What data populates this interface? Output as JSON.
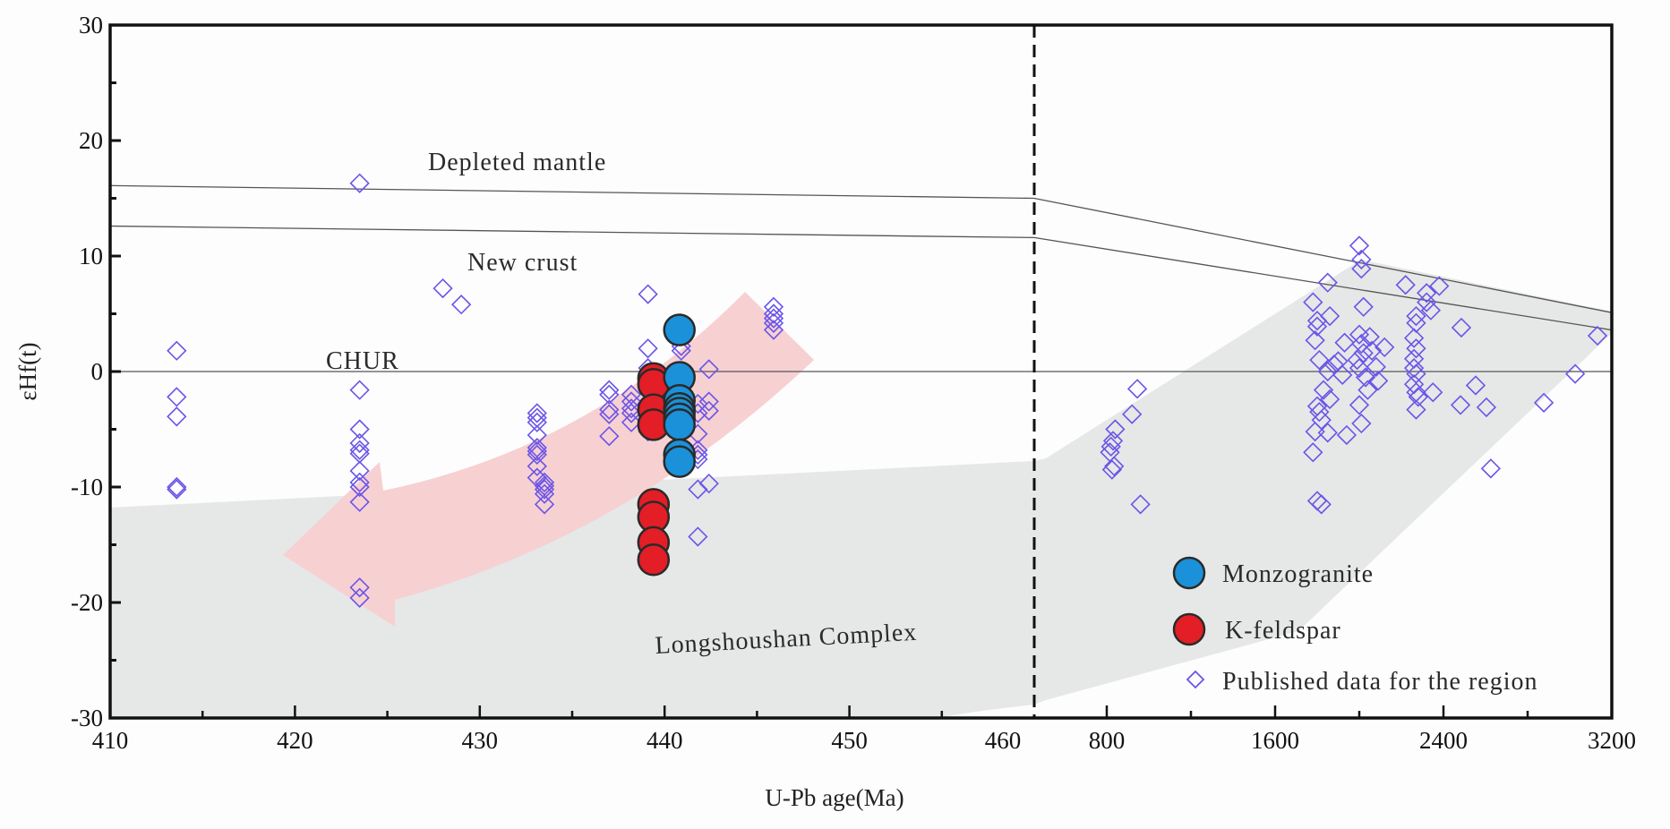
{
  "chart_data": {
    "type": "scatter",
    "title": "",
    "xlabel": "U-Pb age(Ma)",
    "ylabel": "εHf(t)",
    "ylim": [
      -30,
      30
    ],
    "yticks": [
      "30",
      "20",
      "10",
      "0",
      "-10",
      "-20",
      "-30"
    ],
    "ytick_values": [
      30,
      20,
      10,
      0,
      -10,
      -20,
      -30
    ],
    "x_panels": [
      {
        "name": "left",
        "range": [
          410,
          460
        ],
        "ticks": [
          410,
          420,
          430,
          440,
          450,
          460
        ],
        "tick_labels": [
          "410",
          "420",
          "430",
          "440",
          "450",
          "460"
        ],
        "minor_step": 5
      },
      {
        "name": "right",
        "range": [
          455,
          3200
        ],
        "ticks": [
          800,
          1600,
          2400,
          3200
        ],
        "tick_labels": [
          "800",
          "1600",
          "2400",
          "3200"
        ],
        "minor_ticks": [
          1200,
          2000,
          2800
        ]
      }
    ],
    "grid": false,
    "legend_position": "bottom-right",
    "reference_lines": [
      {
        "name": "Depleted mantle",
        "points": [
          [
            410,
            16.1
          ],
          [
            460,
            15.0
          ],
          [
            3200,
            5.1
          ]
        ]
      },
      {
        "name": "New crust",
        "points": [
          [
            410,
            12.6
          ],
          [
            460,
            11.6
          ],
          [
            3200,
            3.6
          ]
        ]
      },
      {
        "name": "CHUR",
        "points": [
          [
            410,
            0
          ],
          [
            3200,
            0
          ]
        ]
      }
    ],
    "annotations": [
      {
        "text": "Depleted mantle",
        "x": 423,
        "y": 18
      },
      {
        "text": "New crust",
        "x": 425,
        "y": 9
      },
      {
        "text": "CHUR",
        "x": 417,
        "y": 0.8
      },
      {
        "text": "Longshoushan Complex",
        "x": 440,
        "y": -23.5
      }
    ],
    "series": [
      {
        "name": "Monzogranite",
        "color": "#1a91d8",
        "marker": "circle",
        "points": [
          [
            440.8,
            3.6
          ],
          [
            440.8,
            -0.5
          ],
          [
            440.8,
            -2.5
          ],
          [
            440.8,
            -3.2
          ],
          [
            440.8,
            -3.6
          ],
          [
            440.8,
            -4.1
          ],
          [
            440.8,
            -4.6
          ],
          [
            440.8,
            -7.2
          ],
          [
            440.8,
            -7.8
          ]
        ]
      },
      {
        "name": "K-feldspar",
        "color": "#e31e26",
        "marker": "circle",
        "points": [
          [
            439.4,
            -0.6
          ],
          [
            439.4,
            -1.1
          ],
          [
            439.4,
            -3.3
          ],
          [
            439.4,
            -4.6
          ],
          [
            439.4,
            -11.5
          ],
          [
            439.4,
            -12.6
          ],
          [
            439.4,
            -14.8
          ],
          [
            439.4,
            -16.3
          ]
        ]
      },
      {
        "name": "Published data for the region",
        "color": "#6a55e8",
        "marker": "diamond",
        "points": [
          [
            413.6,
            1.8
          ],
          [
            413.6,
            -2.2
          ],
          [
            413.6,
            -3.9
          ],
          [
            413.6,
            -10.0
          ],
          [
            413.6,
            -10.2
          ],
          [
            423.5,
            16.3
          ],
          [
            423.5,
            -1.6
          ],
          [
            423.5,
            -5.0
          ],
          [
            423.5,
            -6.2
          ],
          [
            423.5,
            -6.8
          ],
          [
            423.5,
            -7.1
          ],
          [
            423.5,
            -8.6
          ],
          [
            423.5,
            -9.6
          ],
          [
            423.5,
            -10.0
          ],
          [
            423.5,
            -11.3
          ],
          [
            423.5,
            -18.7
          ],
          [
            423.5,
            -19.6
          ],
          [
            428.0,
            7.2
          ],
          [
            429.0,
            5.8
          ],
          [
            433.1,
            -3.6
          ],
          [
            433.1,
            -4.0
          ],
          [
            433.1,
            -4.4
          ],
          [
            433.1,
            -5.5
          ],
          [
            433.1,
            -6.6
          ],
          [
            433.1,
            -6.9
          ],
          [
            433.1,
            -7.2
          ],
          [
            433.1,
            -8.2
          ],
          [
            433.1,
            -9.2
          ],
          [
            433.5,
            -9.6
          ],
          [
            433.5,
            -9.9
          ],
          [
            433.5,
            -10.2
          ],
          [
            433.5,
            -10.6
          ],
          [
            433.5,
            -11.5
          ],
          [
            437.0,
            -1.6
          ],
          [
            437.0,
            -2.0
          ],
          [
            437.0,
            -3.3
          ],
          [
            437.0,
            -3.7
          ],
          [
            437.0,
            -5.6
          ],
          [
            438.2,
            -2.0
          ],
          [
            438.2,
            -2.6
          ],
          [
            438.2,
            -3.2
          ],
          [
            438.2,
            -3.6
          ],
          [
            438.2,
            -4.4
          ],
          [
            439.1,
            6.7
          ],
          [
            439.1,
            2.0
          ],
          [
            439.1,
            0.3
          ],
          [
            439.1,
            -5.2
          ],
          [
            440.9,
            2.2
          ],
          [
            440.9,
            1.8
          ],
          [
            441.8,
            -2.8
          ],
          [
            441.8,
            -3.6
          ],
          [
            441.8,
            -5.4
          ],
          [
            441.8,
            -6.8
          ],
          [
            441.8,
            -7.2
          ],
          [
            441.8,
            -7.6
          ],
          [
            441.8,
            -10.2
          ],
          [
            441.8,
            -14.3
          ],
          [
            442.4,
            0.2
          ],
          [
            442.4,
            -2.6
          ],
          [
            442.4,
            -3.4
          ],
          [
            442.4,
            -9.7
          ],
          [
            445.9,
            5.6
          ],
          [
            445.9,
            5.0
          ],
          [
            445.9,
            4.6
          ],
          [
            445.9,
            4.2
          ],
          [
            445.9,
            3.6
          ],
          [
            945,
            -1.5
          ],
          [
            920,
            -3.7
          ],
          [
            840,
            -5.0
          ],
          [
            830,
            -6.0
          ],
          [
            820,
            -6.5
          ],
          [
            815,
            -7.0
          ],
          [
            835,
            -8.2
          ],
          [
            825,
            -8.5
          ],
          [
            960,
            -11.5
          ],
          [
            1780,
            6.0
          ],
          [
            1800,
            4.4
          ],
          [
            1800,
            3.9
          ],
          [
            1790,
            2.7
          ],
          [
            1810,
            1.0
          ],
          [
            1830,
            -1.6
          ],
          [
            1800,
            -3.0
          ],
          [
            1810,
            -3.5
          ],
          [
            1820,
            -4.2
          ],
          [
            1790,
            -5.2
          ],
          [
            1780,
            -7.0
          ],
          [
            1800,
            -11.2
          ],
          [
            1820,
            -11.5
          ],
          [
            1850,
            7.7
          ],
          [
            1860,
            4.8
          ],
          [
            1850,
            0.0
          ],
          [
            1860,
            -2.4
          ],
          [
            1850,
            -5.3
          ],
          [
            1880,
            0.6
          ],
          [
            1900,
            0.9
          ],
          [
            1920,
            -0.3
          ],
          [
            1930,
            2.5
          ],
          [
            1940,
            -5.5
          ],
          [
            2000,
            10.9
          ],
          [
            2010,
            9.7
          ],
          [
            2010,
            8.9
          ],
          [
            2020,
            5.6
          ],
          [
            2000,
            3.2
          ],
          [
            2010,
            2.4
          ],
          [
            2020,
            1.6
          ],
          [
            1990,
            1.0
          ],
          [
            2000,
            0.3
          ],
          [
            2030,
            -0.5
          ],
          [
            2040,
            -1.6
          ],
          [
            2000,
            -2.9
          ],
          [
            2010,
            -4.5
          ],
          [
            2050,
            3.0
          ],
          [
            2060,
            1.8
          ],
          [
            2080,
            0.4
          ],
          [
            2090,
            -0.8
          ],
          [
            2120,
            2.1
          ],
          [
            2220,
            7.5
          ],
          [
            2270,
            4.8
          ],
          [
            2270,
            4.2
          ],
          [
            2260,
            2.9
          ],
          [
            2270,
            2.0
          ],
          [
            2260,
            1.1
          ],
          [
            2260,
            0.3
          ],
          [
            2270,
            -0.2
          ],
          [
            2260,
            -1.1
          ],
          [
            2270,
            -1.8
          ],
          [
            2280,
            -2.2
          ],
          [
            2270,
            -3.3
          ],
          [
            2320,
            6.8
          ],
          [
            2320,
            6.0
          ],
          [
            2340,
            5.3
          ],
          [
            2350,
            -1.8
          ],
          [
            2380,
            7.4
          ],
          [
            2485,
            3.8
          ],
          [
            2553,
            -1.2
          ],
          [
            2481,
            -2.9
          ],
          [
            2604,
            -3.1
          ],
          [
            2877,
            -2.7
          ],
          [
            3026,
            -0.2
          ],
          [
            3132,
            3.1
          ],
          [
            2625,
            -8.4
          ]
        ]
      }
    ]
  },
  "legend": {
    "items": [
      {
        "label": "Monzogranite",
        "marker": "circle",
        "color": "#1a91d8"
      },
      {
        "label": "K-feldspar",
        "marker": "circle",
        "color": "#e31e26"
      },
      {
        "label": "Published data for the region",
        "marker": "diamond",
        "color": "#6a55e8"
      }
    ]
  },
  "colors": {
    "field_gray": "#e6e7e7",
    "arrow_pink": "#f7d0d2",
    "axis": "#111111",
    "reference_line": "#555555"
  }
}
